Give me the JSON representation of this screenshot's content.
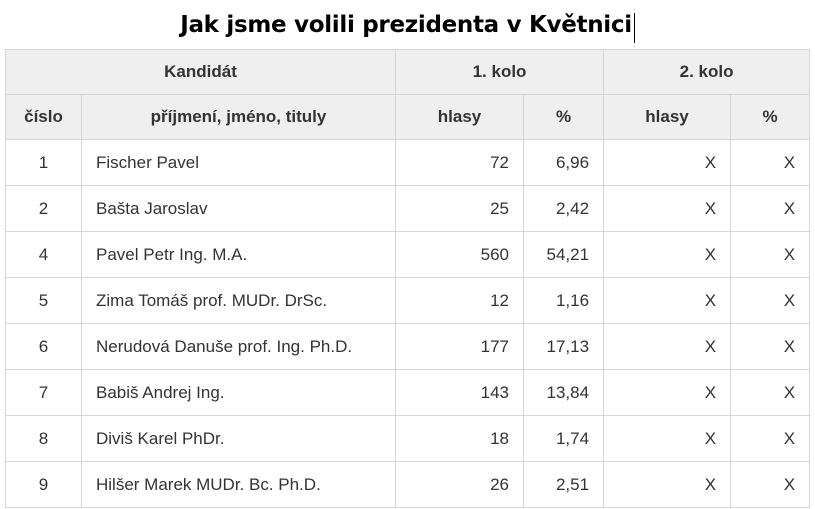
{
  "title": "Jak jsme volili prezidenta v Květnici",
  "header": {
    "group": {
      "candidate": "Kandidát",
      "round1": "1. kolo",
      "round2": "2. kolo"
    },
    "columns": {
      "number": "číslo",
      "name": "příjmení, jméno, tituly",
      "r1_votes": "hlasy",
      "r1_pct": "%",
      "r2_votes": "hlasy",
      "r2_pct": "%"
    }
  },
  "rows": [
    {
      "number": "1",
      "name": "Fischer Pavel",
      "r1_votes": "72",
      "r1_pct": "6,96",
      "r2_votes": "X",
      "r2_pct": "X"
    },
    {
      "number": "2",
      "name": "Bašta Jaroslav",
      "r1_votes": "25",
      "r1_pct": "2,42",
      "r2_votes": "X",
      "r2_pct": "X"
    },
    {
      "number": "4",
      "name": "Pavel Petr Ing. M.A.",
      "r1_votes": "560",
      "r1_pct": "54,21",
      "r2_votes": "X",
      "r2_pct": "X"
    },
    {
      "number": "5",
      "name": "Zima Tomáš prof. MUDr. DrSc.",
      "r1_votes": "12",
      "r1_pct": "1,16",
      "r2_votes": "X",
      "r2_pct": "X"
    },
    {
      "number": "6",
      "name": "Nerudová Danuše prof. Ing. Ph.D.",
      "r1_votes": "177",
      "r1_pct": "17,13",
      "r2_votes": "X",
      "r2_pct": "X"
    },
    {
      "number": "7",
      "name": "Babiš Andrej Ing.",
      "r1_votes": "143",
      "r1_pct": "13,84",
      "r2_votes": "X",
      "r2_pct": "X"
    },
    {
      "number": "8",
      "name": "Diviš Karel PhDr.",
      "r1_votes": "18",
      "r1_pct": "1,74",
      "r2_votes": "X",
      "r2_pct": "X"
    },
    {
      "number": "9",
      "name": "Hilšer Marek MUDr. Bc. Ph.D.",
      "r1_votes": "26",
      "r1_pct": "2,51",
      "r2_votes": "X",
      "r2_pct": "X"
    }
  ]
}
